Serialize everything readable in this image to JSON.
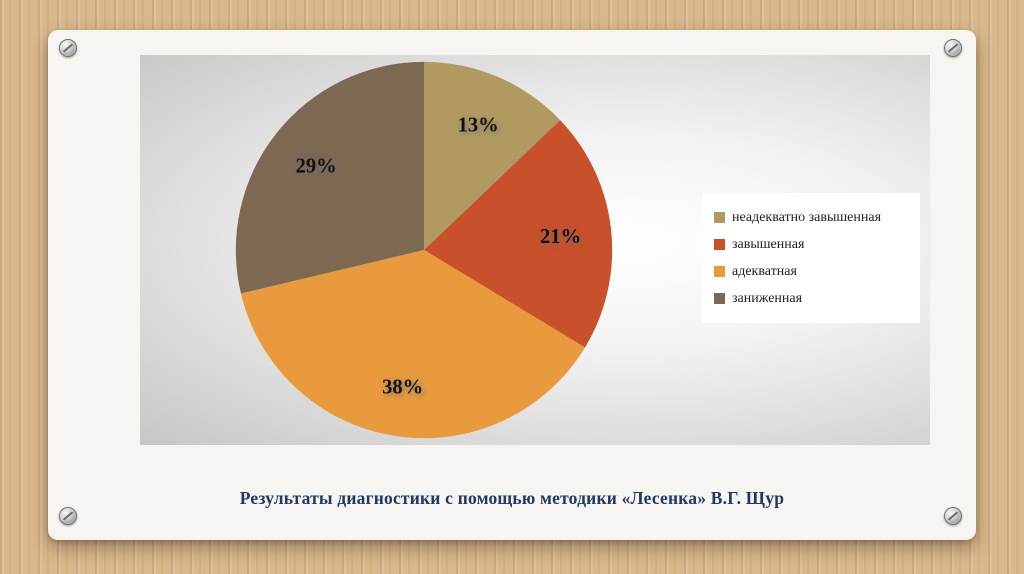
{
  "slide": {
    "caption": "Результаты диагностики с помощью методики «Лесенка» В.Г. Щур"
  },
  "chart_data": {
    "type": "pie",
    "title": "",
    "labels": [
      "неадекватно завышенная",
      "завышенная",
      "адекватная",
      "заниженная"
    ],
    "values": [
      13,
      21,
      38,
      29
    ],
    "display_labels": [
      "13%",
      "21%",
      "38%",
      "29%"
    ],
    "colors": [
      "#b09a62",
      "#c8502b",
      "#e89a3c",
      "#7d6852"
    ],
    "legend_position": "right",
    "start_angle_deg": 0,
    "direction": "clockwise",
    "label_radius_fraction": 0.73
  }
}
